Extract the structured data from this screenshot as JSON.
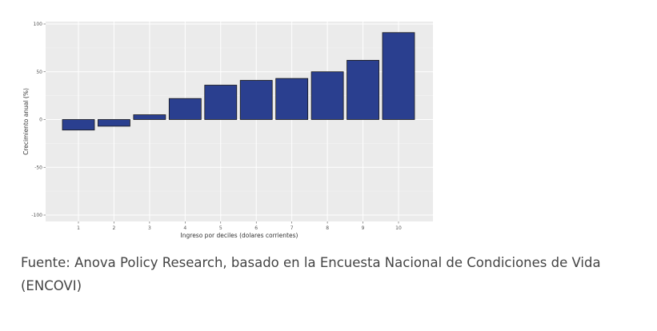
{
  "chart_data": {
    "type": "bar",
    "categories": [
      "1",
      "2",
      "3",
      "4",
      "5",
      "6",
      "7",
      "8",
      "9",
      "10"
    ],
    "values": [
      -11,
      -7,
      5,
      22,
      36,
      41,
      43,
      50,
      62,
      91
    ],
    "xlabel": "Ingreso por deciles (dolares corrientes)",
    "ylabel": "Crecimiento anual (%)",
    "ylim": [
      -100,
      100
    ],
    "yticks": [
      -100,
      -50,
      0,
      50,
      100
    ],
    "grid": true,
    "colors": {
      "bar_fill": "#2a3f8f",
      "bar_stroke": "#1a1a1a",
      "panel_background": "#ebebeb",
      "grid_major": "#ffffff"
    }
  },
  "caption": {
    "text": "Fuente: Anova Policy Research, basado en la Encuesta Nacional de Condiciones de Vida (ENCOVI)"
  }
}
